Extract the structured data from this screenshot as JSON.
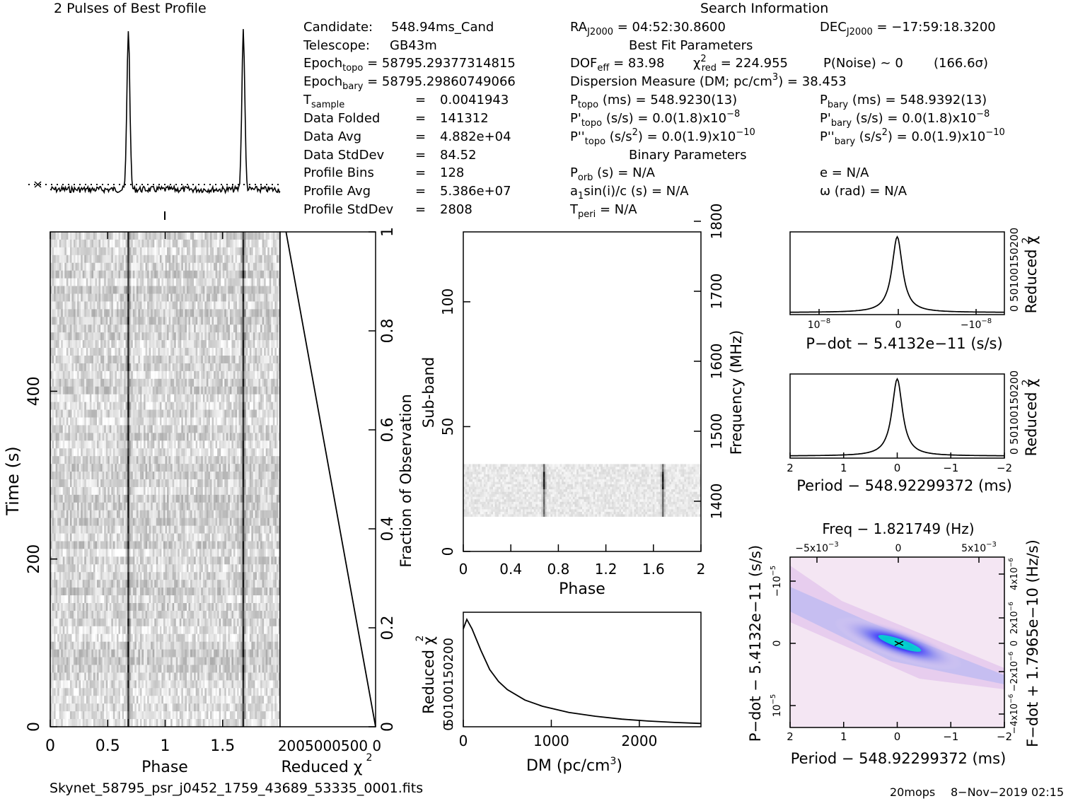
{
  "profile_title": "2 Pulses of Best Profile",
  "search_title": "Search Information",
  "candidate_label": "Candidate:",
  "candidate": "548.94ms_Cand",
  "telescope_label": "Telescope:",
  "telescope": "GB43m",
  "epoch_topo_value": "= 58795.29377314815",
  "epoch_bary_value": "= 58795.29860749066",
  "tsample_value": "0.0041943",
  "data_folded_label": "Data Folded",
  "data_folded": "141312",
  "data_avg_label": "Data Avg",
  "data_avg": "4.882e+04",
  "data_stddev_label": "Data StdDev",
  "data_stddev": "84.52",
  "profile_bins_label": "Profile Bins",
  "profile_bins": "128",
  "profile_avg_label": "Profile Avg",
  "profile_avg": "5.386e+07",
  "profile_stddev_label": "Profile StdDev",
  "profile_stddev": "2808",
  "ra_value": "= 04:52:30.8600",
  "dec_value": "= −17:59:18.3200",
  "best_fit_title": "Best Fit Parameters",
  "dof_value": "= 83.98",
  "chi_red_value": "= 224.955",
  "pnoise": "P(Noise) ~ 0",
  "sigma": "(166.6σ)",
  "dm_text": "Dispersion Measure (DM; pc/cm",
  "dm_value": ") = 38.453",
  "ptopo_value": "(ms) =  548.9230(13)",
  "pbary_value": "(ms) =  548.9392(13)",
  "pdot_topo_value": "(s/s) = 0.0(1.8)x10",
  "pdot_bary_value": "(s/s) = 0.0(1.8)x10",
  "pdot_exp": "−8",
  "pddot_topo_value": "= 0.0(1.9)x10",
  "pddot_bary_value": "= 0.0(1.9)x10",
  "pddot_exp": "−10",
  "binary_title": "Binary Parameters",
  "porb_value": "(s) = N/A",
  "e_value": "e = N/A",
  "a1_value": "sin(i)/c (s) = N/A",
  "omega_value": "ω (rad) = N/A",
  "tperi_value": "= N/A",
  "footer_file": "Skynet_58795_psr_j0452_1759_43689_53335_0001.fits",
  "footer_tag": "20mops",
  "footer_date": "8−Nov−2019 02:15",
  "colors": {
    "ink": "#000000",
    "greyscale_bg": "#d9d9d9",
    "colormap_low": "#f2d9f0",
    "colormap_mid": "#1a1aff",
    "colormap_peak": "#00e5c8"
  },
  "chart_data": [
    {
      "type": "line",
      "name": "pulse_profile",
      "title": "2 Pulses of Best Profile",
      "xlabel": "",
      "ylabel": "",
      "x_range": [
        0,
        2
      ],
      "peaks_phase": [
        0.68,
        1.68
      ],
      "baseline_marker": "dotted"
    },
    {
      "type": "heatmap",
      "name": "time_vs_phase",
      "xlabel": "Phase",
      "ylabel": "Time (s)",
      "x_ticks": [
        "0",
        "0.5",
        "1",
        "1.5"
      ],
      "y_ticks": [
        "0",
        "200",
        "400"
      ],
      "xlim": [
        0,
        2
      ],
      "ylim": [
        0,
        590
      ],
      "pulse_phase": [
        0.68,
        1.68
      ],
      "colormap": "greyscale"
    },
    {
      "type": "line",
      "name": "reduced_chi2_vs_time",
      "xlabel": "Reduced χ",
      "ylabel": "Fraction of Observation",
      "x_tick_labels": "2005000500 0",
      "y_ticks": [
        "0",
        "0.2",
        "0.4",
        "0.6",
        "0.8",
        "1"
      ],
      "points": [
        [
          225,
          1.0
        ],
        [
          0,
          0.0
        ]
      ]
    },
    {
      "type": "heatmap",
      "name": "subband_vs_phase",
      "xlabel": "Phase",
      "ylabel": "Sub-band",
      "y2label": "Frequency (MHz)",
      "x_ticks": [
        "0",
        "0.4",
        "0.8",
        "1.2",
        "1.6",
        "2"
      ],
      "y_ticks": [
        "0",
        "50",
        "100"
      ],
      "y2_ticks": [
        "1400",
        "1500",
        "1600",
        "1700",
        "1800"
      ],
      "xlim": [
        0,
        2
      ],
      "ylim": [
        0,
        128
      ],
      "active_subbands": [
        14,
        35
      ],
      "pulse_phase": [
        0.68,
        1.68
      ]
    },
    {
      "type": "line",
      "name": "chi2_vs_dm",
      "xlabel": "DM (pc/cm",
      "xlabel_sup": "3",
      "xlabel_end": ")",
      "ylabel": "Reduced χ",
      "x_ticks": [
        "0",
        "1000",
        "2000"
      ],
      "y_tick_labels": "50100150200",
      "xlim": [
        0,
        2700
      ],
      "x": [
        0,
        40,
        100,
        200,
        300,
        400,
        500,
        700,
        900,
        1200,
        1500,
        1800,
        2100,
        2400,
        2700
      ],
      "y": [
        205,
        225,
        205,
        160,
        120,
        95,
        78,
        56,
        43,
        30,
        22,
        16,
        12,
        9,
        7
      ]
    },
    {
      "type": "line",
      "name": "chi2_vs_pdot",
      "xlabel": "P−dot − 5.4132e−11 (s/s)",
      "ylabel": "Reduced χ",
      "x_ticks": [
        "10",
        "0",
        "−10"
      ],
      "x_tick_exp": "−8",
      "y_tick_labels": "0 50100150200",
      "peak_value": 225
    },
    {
      "type": "line",
      "name": "chi2_vs_period",
      "xlabel": "Period − 548.92299372 (ms)",
      "ylabel": "Reduced χ",
      "x_ticks": [
        "2",
        "1",
        "0",
        "−1",
        "−2"
      ],
      "y_tick_labels": "0 50100150200",
      "peak_value": 225
    },
    {
      "type": "heatmap",
      "name": "pdot_vs_period",
      "title": "Freq − 1.821749 (Hz)",
      "xlabel": "Period − 548.92299372 (ms)",
      "ylabel": "P−dot − 5.4132e−11 (s/s)",
      "y2label": "F−dot + 1.7965e−10 (Hz/s)",
      "x_ticks": [
        "2",
        "1",
        "0",
        "−1",
        "−2"
      ],
      "top_ticks": [
        "−5x10",
        "0",
        "5x10"
      ],
      "top_tick_exp": "−3",
      "y_ticks": [
        "10",
        "0",
        "10"
      ],
      "y2_tick_labels": [
        "4x10",
        "2x10",
        "0",
        "−2x10",
        "−4x10"
      ],
      "y2_tick_exp": "−6",
      "colormap": "white-magenta-blue-cyan"
    }
  ]
}
